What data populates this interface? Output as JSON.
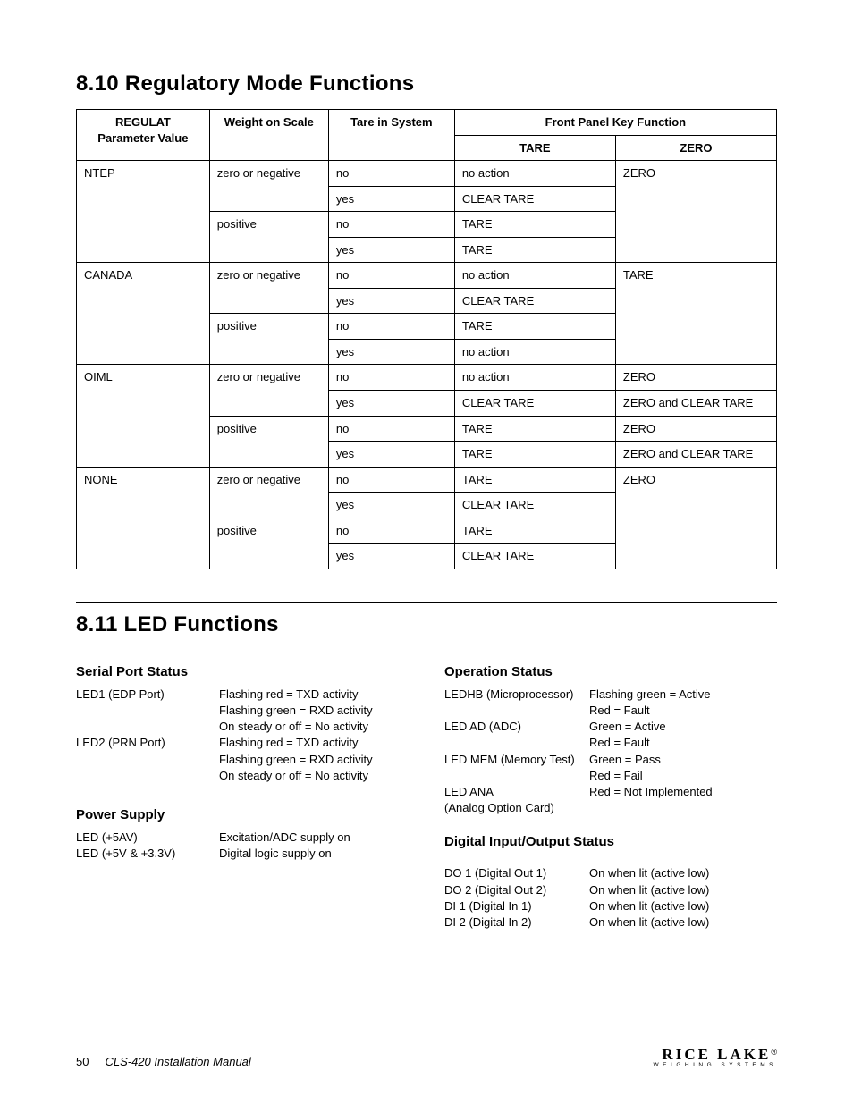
{
  "section1": {
    "heading": "8.10   Regulatory Mode Functions",
    "table": {
      "header_group_regulat": "REGULAT",
      "header_param_value": "Parameter Value",
      "header_weight": "Weight on Scale",
      "header_tare_sys": "Tare in System",
      "header_front_panel": "Front Panel Key Function",
      "header_tare": "TARE",
      "header_zero": "ZERO",
      "groups": [
        {
          "param": "NTEP",
          "rows": [
            {
              "weight": "zero or negative",
              "tare_sys": "no",
              "tare": "no action",
              "zero": "ZERO"
            },
            {
              "weight": "",
              "tare_sys": "yes",
              "tare": "CLEAR TARE",
              "zero": ""
            },
            {
              "weight": "positive",
              "tare_sys": "no",
              "tare": "TARE",
              "zero": ""
            },
            {
              "weight": "",
              "tare_sys": "yes",
              "tare": "TARE",
              "zero": ""
            }
          ]
        },
        {
          "param": "CANADA",
          "rows": [
            {
              "weight": "zero or negative",
              "tare_sys": "no",
              "tare": "no action",
              "zero": "TARE"
            },
            {
              "weight": "",
              "tare_sys": "yes",
              "tare": "CLEAR TARE",
              "zero": ""
            },
            {
              "weight": "positive",
              "tare_sys": "no",
              "tare": "TARE",
              "zero": ""
            },
            {
              "weight": "",
              "tare_sys": "yes",
              "tare": "no action",
              "zero": ""
            }
          ]
        },
        {
          "param": "OIML",
          "rows": [
            {
              "weight": "zero or negative",
              "tare_sys": "no",
              "tare": "no action",
              "zero": "ZERO"
            },
            {
              "weight": "",
              "tare_sys": "yes",
              "tare": "CLEAR TARE",
              "zero": "ZERO and CLEAR TARE"
            },
            {
              "weight": "positive",
              "tare_sys": "no",
              "tare": "TARE",
              "zero": "ZERO"
            },
            {
              "weight": "",
              "tare_sys": "yes",
              "tare": "TARE",
              "zero": "ZERO and CLEAR TARE"
            }
          ]
        },
        {
          "param": "NONE",
          "rows": [
            {
              "weight": "zero or negative",
              "tare_sys": "no",
              "tare": "TARE",
              "zero": "ZERO"
            },
            {
              "weight": "",
              "tare_sys": "yes",
              "tare": "CLEAR TARE",
              "zero": ""
            },
            {
              "weight": "positive",
              "tare_sys": "no",
              "tare": "TARE",
              "zero": ""
            },
            {
              "weight": "",
              "tare_sys": "yes",
              "tare": "CLEAR TARE",
              "zero": ""
            }
          ]
        }
      ]
    }
  },
  "section2": {
    "heading": "8.11   LED Functions",
    "left": {
      "serial_heading": "Serial Port Status",
      "serial": [
        {
          "k": "LED1 (EDP Port)",
          "v": "Flashing red = TXD activity"
        },
        {
          "k": "",
          "v": "Flashing green = RXD activity"
        },
        {
          "k": "",
          "v": "On steady or off = No activity"
        },
        {
          "k": "LED2 (PRN Port)",
          "v": "Flashing red = TXD activity"
        },
        {
          "k": "",
          "v": "Flashing green = RXD activity"
        },
        {
          "k": "",
          "v": "On steady or off = No activity"
        }
      ],
      "power_heading": "Power Supply",
      "power": [
        {
          "k": "LED (+5AV)",
          "v": "Excitation/ADC supply on"
        },
        {
          "k": "LED (+5V & +3.3V)",
          "v": "Digital logic supply on"
        }
      ]
    },
    "right": {
      "op_heading": "Operation Status",
      "op": [
        {
          "k": "LEDHB (Microprocessor)",
          "v": "Flashing green = Active"
        },
        {
          "k": "",
          "v": "Red = Fault"
        },
        {
          "k": "LED AD (ADC)",
          "v": "Green = Active"
        },
        {
          "k": "",
          "v": "Red = Fault"
        },
        {
          "k": "LED MEM (Memory Test)",
          "v": "Green = Pass"
        },
        {
          "k": "",
          "v": "Red = Fail"
        },
        {
          "k": "LED ANA",
          "v": "Red = Not Implemented"
        },
        {
          "k": "(Analog Option Card)",
          "v": ""
        }
      ],
      "dio_heading": "Digital Input/Output Status",
      "dio": [
        {
          "k": "DO 1 (Digital Out 1)",
          "v": "On when lit (active low)"
        },
        {
          "k": "DO 2 (Digital Out 2)",
          "v": "On when lit (active low)"
        },
        {
          "k": "DI 1 (Digital In 1)",
          "v": "On when lit (active low)"
        },
        {
          "k": "DI 2 (Digital In 2)",
          "v": "On when lit (active low)"
        }
      ]
    }
  },
  "footer": {
    "page": "50",
    "manual": "CLS-420 Installation Manual",
    "logo_main": "RICE LAKE",
    "logo_sub": "WEIGHING SYSTEMS",
    "logo_reg": "®"
  },
  "style": {
    "text_color": "#000000",
    "background_color": "#ffffff",
    "border_color": "#000000",
    "heading_fontsize": 24,
    "subheading_fontsize": 15,
    "body_fontsize": 13,
    "col_widths_pct": [
      19,
      17,
      18,
      23,
      23
    ]
  }
}
